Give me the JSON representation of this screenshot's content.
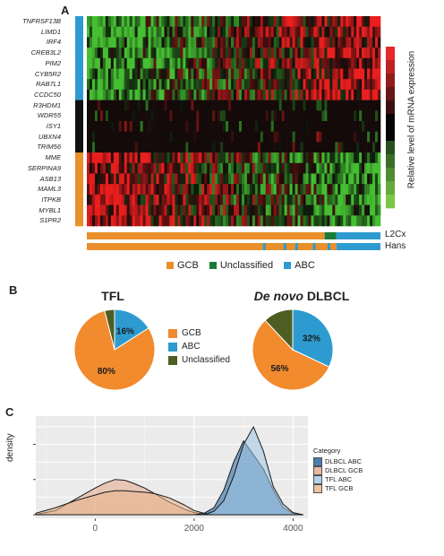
{
  "panels": {
    "a": "A",
    "b": "B",
    "c": "C"
  },
  "heatmap": {
    "genes": [
      "TNFRSF13B",
      "LIMD1",
      "IRF4",
      "CREB3L2",
      "PIM2",
      "CYB5R2",
      "RAB7L1",
      "CCDC50",
      "R3HDM1",
      "WDR55",
      "ISY1",
      "UBXN4",
      "TRIM56",
      "MME",
      "SERPINA9",
      "ASB13",
      "MAML3",
      "ITPKB",
      "MYBL1",
      "S1PR2"
    ],
    "gene_groups": [
      "ABC",
      "ABC",
      "ABC",
      "ABC",
      "ABC",
      "ABC",
      "ABC",
      "ABC",
      "Neutral",
      "Neutral",
      "Neutral",
      "Neutral",
      "Neutral",
      "GCB",
      "GCB",
      "GCB",
      "GCB",
      "GCB",
      "GCB",
      "GCB"
    ],
    "colorbar_label": "Relative level of mRNA expression",
    "track_labels": [
      "L2Cx",
      "Hans"
    ],
    "legend": [
      {
        "label": "GCB",
        "color": "#e98f2b"
      },
      {
        "label": "Unclassified",
        "color": "#1a7a3a"
      },
      {
        "label": "ABC",
        "color": "#2e9bd0"
      }
    ],
    "group_colors": {
      "ABC": "#2e9bd0",
      "Neutral": "#111111",
      "GCB": "#e98f2b"
    }
  },
  "pies": {
    "legend": [
      {
        "label": "GCB",
        "color": "#f28a2e"
      },
      {
        "label": "ABC",
        "color": "#2e9bd0"
      },
      {
        "label": "Unclassified",
        "color": "#4d5e23"
      }
    ],
    "charts": [
      {
        "title": "TFL",
        "title_italic": "",
        "slices": [
          {
            "name": "GCB",
            "value": 80,
            "label": "80%"
          },
          {
            "name": "ABC",
            "value": 16,
            "label": "16%"
          },
          {
            "name": "Unclassified",
            "value": 4,
            "label": ""
          }
        ]
      },
      {
        "title": "DLBCL",
        "title_italic": "De novo",
        "slices": [
          {
            "name": "GCB",
            "value": 56,
            "label": "56%"
          },
          {
            "name": "ABC",
            "value": 32,
            "label": "32%"
          },
          {
            "name": "Unclassified",
            "value": 12,
            "label": ""
          }
        ]
      }
    ]
  },
  "chart_data": [
    {
      "type": "pie",
      "title": "TFL",
      "categories": [
        "GCB",
        "ABC",
        "Unclassified"
      ],
      "values": [
        80,
        16,
        4
      ]
    },
    {
      "type": "pie",
      "title": "De novo DLBCL",
      "categories": [
        "GCB",
        "ABC",
        "Unclassified"
      ],
      "values": [
        56,
        32,
        12
      ]
    },
    {
      "type": "area",
      "ylabel": "density",
      "xlabel": "",
      "xlim": [
        -1200,
        4300
      ],
      "xticks": [
        "0",
        "2000",
        "4000"
      ],
      "xtick_values": [
        0,
        2000,
        4000
      ],
      "legend_title": "Category",
      "legend_position": "right",
      "grid": true,
      "x": [
        -1200,
        -800,
        -400,
        0,
        200,
        400,
        600,
        800,
        1000,
        1200,
        1500,
        1800,
        2000,
        2200,
        2400,
        2600,
        2800,
        3000,
        3200,
        3400,
        3600,
        3800,
        4000,
        4200
      ],
      "series": [
        {
          "name": "DLBCL ABC",
          "fill": "#1e5f9e",
          "values": [
            0,
            0,
            0,
            0,
            0,
            0,
            0,
            0,
            0,
            0,
            0,
            0,
            0,
            0.02,
            0.1,
            0.35,
            0.75,
            1.05,
            0.85,
            0.65,
            0.35,
            0.1,
            0.02,
            0
          ]
        },
        {
          "name": "DLBCL GCB",
          "fill": "#e3a88a",
          "values": [
            0,
            0.06,
            0.22,
            0.38,
            0.45,
            0.5,
            0.49,
            0.44,
            0.38,
            0.3,
            0.18,
            0.08,
            0.03,
            0.01,
            0,
            0,
            0,
            0,
            0,
            0,
            0,
            0,
            0,
            0
          ]
        },
        {
          "name": "TFL ABC",
          "fill": "#9fc7e6",
          "values": [
            0,
            0,
            0,
            0,
            0,
            0,
            0,
            0,
            0,
            0,
            0,
            0,
            0,
            0,
            0.05,
            0.2,
            0.55,
            1.0,
            1.25,
            0.9,
            0.4,
            0.15,
            0.03,
            0
          ]
        },
        {
          "name": "TFL GCB",
          "fill": "#e8b48a",
          "values": [
            0.02,
            0.1,
            0.2,
            0.28,
            0.32,
            0.34,
            0.34,
            0.33,
            0.32,
            0.3,
            0.24,
            0.14,
            0.06,
            0.02,
            0,
            0,
            0,
            0,
            0,
            0,
            0,
            0,
            0,
            0
          ]
        }
      ]
    }
  ]
}
